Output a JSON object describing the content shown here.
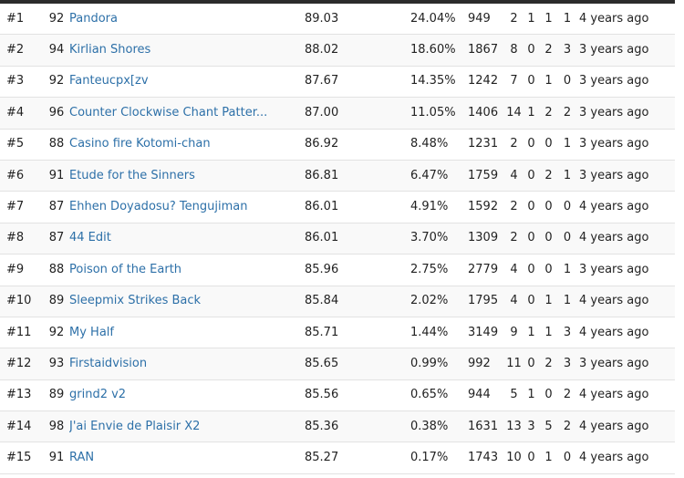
{
  "leaderboard": {
    "rows": [
      {
        "rank": "#1",
        "level": "92",
        "title": "Pandora",
        "dt": "89.03",
        "acc": "24.04%",
        "combo": "949",
        "a": "2",
        "b": "1",
        "c": "1",
        "d": "1",
        "date": "4 years ago"
      },
      {
        "rank": "#2",
        "level": "94",
        "title": "Kirlian Shores",
        "dt": "88.02",
        "acc": "18.60%",
        "combo": "1867",
        "a": "8",
        "b": "0",
        "c": "2",
        "d": "3",
        "date": "3 years ago"
      },
      {
        "rank": "#3",
        "level": "92",
        "title": "Fanteucpx[zv",
        "dt": "87.67",
        "acc": "14.35%",
        "combo": "1242",
        "a": "7",
        "b": "0",
        "c": "1",
        "d": "0",
        "date": "3 years ago"
      },
      {
        "rank": "#4",
        "level": "96",
        "title": "Counter Clockwise Chant Patter...",
        "dt": "87.00",
        "acc": "11.05%",
        "combo": "1406",
        "a": "14",
        "b": "1",
        "c": "2",
        "d": "2",
        "date": "3 years ago"
      },
      {
        "rank": "#5",
        "level": "88",
        "title": "Casino fire Kotomi-chan",
        "dt": "86.92",
        "acc": "8.48%",
        "combo": "1231",
        "a": "2",
        "b": "0",
        "c": "0",
        "d": "1",
        "date": "3 years ago"
      },
      {
        "rank": "#6",
        "level": "91",
        "title": "Etude for the Sinners",
        "dt": "86.81",
        "acc": "6.47%",
        "combo": "1759",
        "a": "4",
        "b": "0",
        "c": "2",
        "d": "1",
        "date": "3 years ago"
      },
      {
        "rank": "#7",
        "level": "87",
        "title": "Ehhen Doyadosu? Tengujiman",
        "dt": "86.01",
        "acc": "4.91%",
        "combo": "1592",
        "a": "2",
        "b": "0",
        "c": "0",
        "d": "0",
        "date": "4 years ago"
      },
      {
        "rank": "#8",
        "level": "87",
        "title": "44 Edit",
        "dt": "86.01",
        "acc": "3.70%",
        "combo": "1309",
        "a": "2",
        "b": "0",
        "c": "0",
        "d": "0",
        "date": "4 years ago"
      },
      {
        "rank": "#9",
        "level": "88",
        "title": "Poison of the Earth",
        "dt": "85.96",
        "acc": "2.75%",
        "combo": "2779",
        "a": "4",
        "b": "0",
        "c": "0",
        "d": "1",
        "date": "3 years ago"
      },
      {
        "rank": "#10",
        "level": "89",
        "title": "Sleepmix Strikes Back",
        "dt": "85.84",
        "acc": "2.02%",
        "combo": "1795",
        "a": "4",
        "b": "0",
        "c": "1",
        "d": "1",
        "date": "4 years ago"
      },
      {
        "rank": "#11",
        "level": "92",
        "title": "My Half",
        "dt": "85.71",
        "acc": "1.44%",
        "combo": "3149",
        "a": "9",
        "b": "1",
        "c": "1",
        "d": "3",
        "date": "4 years ago"
      },
      {
        "rank": "#12",
        "level": "93",
        "title": "Firstaidvision",
        "dt": "85.65",
        "acc": "0.99%",
        "combo": "992",
        "a": "11",
        "b": "0",
        "c": "2",
        "d": "3",
        "date": "3 years ago"
      },
      {
        "rank": "#13",
        "level": "89",
        "title": "grind2 v2",
        "dt": "85.56",
        "acc": "0.65%",
        "combo": "944",
        "a": "5",
        "b": "1",
        "c": "0",
        "d": "2",
        "date": "4 years ago"
      },
      {
        "rank": "#14",
        "level": "98",
        "title": "J'ai Envie de Plaisir X2",
        "dt": "85.36",
        "acc": "0.38%",
        "combo": "1631",
        "a": "13",
        "b": "3",
        "c": "5",
        "d": "2",
        "date": "4 years ago"
      },
      {
        "rank": "#15",
        "level": "91",
        "title": "RAN",
        "dt": "85.27",
        "acc": "0.17%",
        "combo": "1743",
        "a": "10",
        "b": "0",
        "c": "1",
        "d": "0",
        "date": "4 years ago"
      }
    ]
  },
  "colors": {
    "link": "#2d70a8",
    "row_alt": "#f9f9f9",
    "divider": "#e2e2e2",
    "top_bar": "#2b2b2b"
  }
}
